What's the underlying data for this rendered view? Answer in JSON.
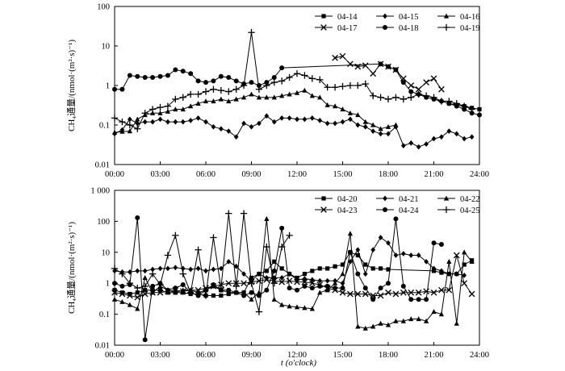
{
  "figure": {
    "xlabel": "t (o'clock)"
  },
  "chart_data": [
    {
      "type": "line",
      "ylabel": "CH₄通量/(nmol·(m²·s)⁻¹)",
      "xlabel": "",
      "xlim": [
        0,
        24
      ],
      "ylim": [
        0.01,
        100
      ],
      "yscale": "log",
      "x_ticks": [
        "00:00",
        "03:00",
        "06:00",
        "09:00",
        "12:00",
        "15:00",
        "18:00",
        "21:00",
        "24:00"
      ],
      "y_ticks": [
        "0.01",
        "0.1",
        "1",
        "10",
        "100"
      ],
      "legend_position": "top-right",
      "grid": false,
      "series": [
        {
          "name": "04-14",
          "marker": "square",
          "x": [
            22.0,
            22.5,
            23.0,
            23.5,
            24.0
          ],
          "y": [
            0.35,
            0.32,
            0.3,
            0.27,
            0.25
          ]
        },
        {
          "name": "04-15",
          "marker": "diamond",
          "x": [
            0.0,
            0.5,
            1.0,
            1.5,
            2.0,
            2.5,
            3.0,
            3.5,
            4.0,
            4.5,
            5.0,
            5.5,
            6.0,
            6.5,
            7.0,
            7.5,
            8.0,
            8.5,
            9.0,
            9.5,
            10.0,
            10.5,
            11.0,
            11.5,
            12.0,
            12.5,
            13.0,
            13.5,
            14.0,
            14.5,
            15.0,
            15.5,
            16.0,
            16.5,
            17.0,
            17.5,
            18.0,
            18.5,
            19.0,
            19.5,
            20.0,
            20.5,
            21.0,
            21.5,
            22.0,
            22.5,
            23.0,
            23.5
          ],
          "y": [
            0.06,
            0.075,
            0.14,
            0.11,
            0.12,
            0.12,
            0.14,
            0.12,
            0.12,
            0.12,
            0.13,
            0.15,
            0.12,
            0.09,
            0.08,
            0.07,
            0.05,
            0.11,
            0.09,
            0.11,
            0.17,
            0.12,
            0.15,
            0.15,
            0.14,
            0.14,
            0.15,
            0.13,
            0.11,
            0.11,
            0.12,
            0.14,
            0.1,
            0.09,
            0.07,
            0.06,
            0.06,
            0.09,
            0.03,
            0.035,
            0.028,
            0.033,
            0.045,
            0.05,
            0.07,
            0.06,
            0.045,
            0.05
          ]
        },
        {
          "name": "04-16",
          "marker": "triangle",
          "x": [
            0.0,
            0.5,
            1.0,
            1.5,
            2.0,
            2.5,
            3.0,
            3.5,
            4.0,
            4.5,
            5.0,
            5.5,
            6.0,
            6.5,
            7.0,
            7.5,
            8.0,
            8.5,
            9.0,
            9.5,
            10.0,
            10.5,
            11.0,
            11.5,
            12.0,
            12.5,
            13.0,
            13.5,
            14.0,
            14.5,
            15.0,
            15.5,
            16.0,
            16.5,
            17.0,
            17.5,
            18.0,
            18.5
          ],
          "y": [
            0.065,
            0.068,
            0.07,
            0.14,
            0.18,
            0.2,
            0.2,
            0.22,
            0.25,
            0.25,
            0.3,
            0.35,
            0.4,
            0.4,
            0.45,
            0.4,
            0.45,
            0.5,
            0.6,
            0.5,
            0.5,
            0.5,
            0.55,
            0.6,
            0.65,
            0.75,
            0.55,
            0.5,
            0.32,
            0.3,
            0.25,
            0.2,
            0.18,
            0.12,
            0.1,
            0.08,
            0.09,
            0.1
          ]
        },
        {
          "name": "04-17",
          "marker": "cross",
          "x": [
            14.5,
            15.0,
            15.5,
            16.0,
            16.5,
            17.0,
            17.5,
            18.0,
            18.5,
            19.0,
            19.5,
            20.0,
            20.5,
            21.0,
            21.5
          ],
          "y": [
            5.0,
            5.5,
            3.5,
            3.0,
            3.2,
            2.0,
            3.5,
            3.0,
            2.5,
            1.5,
            1.0,
            0.8,
            1.2,
            1.5,
            0.8
          ]
        },
        {
          "name": "04-18",
          "marker": "circle",
          "x": [
            0.0,
            0.5,
            1.0,
            1.5,
            2.0,
            2.5,
            3.0,
            3.5,
            4.0,
            4.5,
            5.0,
            5.5,
            6.0,
            6.5,
            7.0,
            7.5,
            8.0,
            8.5,
            9.0,
            9.5,
            10.0,
            10.5,
            11.0,
            17.5,
            18.0,
            18.5,
            19.0,
            19.5,
            20.0,
            20.5,
            21.0,
            21.5,
            22.0,
            22.5,
            23.0,
            23.5,
            24.0
          ],
          "y": [
            0.8,
            0.8,
            1.8,
            1.7,
            1.6,
            1.6,
            1.7,
            1.8,
            2.5,
            2.3,
            2.0,
            1.3,
            1.2,
            1.3,
            1.7,
            1.6,
            1.3,
            1.1,
            1.2,
            1.0,
            1.2,
            1.6,
            2.8,
            3.5,
            3.0,
            2.5,
            1.2,
            0.7,
            0.6,
            0.5,
            0.45,
            0.4,
            0.35,
            0.3,
            0.25,
            0.2,
            0.18
          ]
        },
        {
          "name": "04-19",
          "marker": "plus",
          "x": [
            0.0,
            0.5,
            1.0,
            1.5,
            2.0,
            2.5,
            3.0,
            3.5,
            4.0,
            4.5,
            5.0,
            5.5,
            6.0,
            6.5,
            7.0,
            7.5,
            8.0,
            8.5,
            9.0,
            9.5,
            10.0,
            10.5,
            11.0,
            11.5,
            12.0,
            12.5,
            13.0,
            13.5,
            14.0,
            14.5,
            15.0,
            15.5,
            16.0,
            16.5,
            17.0,
            17.5,
            18.0,
            18.5,
            19.0,
            19.5,
            20.0,
            20.5,
            21.0,
            21.5,
            22.0,
            22.5,
            23.0,
            23.5
          ],
          "y": [
            0.15,
            0.12,
            0.1,
            0.08,
            0.2,
            0.25,
            0.28,
            0.3,
            0.45,
            0.5,
            0.6,
            0.6,
            0.7,
            0.8,
            0.75,
            0.7,
            0.8,
            1.0,
            22.0,
            0.8,
            1.0,
            1.2,
            1.3,
            1.6,
            2.0,
            1.8,
            1.5,
            1.4,
            0.9,
            0.9,
            0.95,
            1.0,
            1.0,
            1.1,
            0.55,
            0.5,
            0.45,
            0.5,
            0.45,
            0.5,
            0.6,
            0.55,
            0.5,
            0.4,
            0.4,
            0.35,
            0.3,
            0.25
          ]
        }
      ]
    },
    {
      "type": "line",
      "ylabel": "CH₄通量/(nmol·(m²·s)⁻¹)",
      "xlabel": "t (o'clock)",
      "xlim": [
        0,
        24
      ],
      "ylim": [
        0.01,
        1000
      ],
      "yscale": "log",
      "x_ticks": [
        "00:00",
        "03:00",
        "06:00",
        "09:00",
        "12:00",
        "15:00",
        "18:00",
        "21:00",
        "24:00"
      ],
      "y_ticks": [
        "0.01",
        "0.1",
        "1",
        "10",
        "100",
        "1 000"
      ],
      "legend_position": "top-right",
      "grid": false,
      "series": [
        {
          "name": "04-20",
          "marker": "square",
          "x": [
            0.0,
            0.5,
            1.0,
            1.5,
            2.0,
            2.5,
            3.0,
            3.5,
            4.0,
            4.5,
            5.0,
            5.5,
            6.0,
            6.5,
            7.0,
            7.5,
            8.0,
            8.5,
            9.0,
            9.5,
            10.0,
            10.5,
            11.0,
            11.5,
            12.0,
            12.5,
            13.0,
            13.5,
            14.0,
            14.5,
            15.0,
            15.5,
            16.0,
            16.5,
            17.0,
            17.5,
            18.0,
            21.0,
            21.5,
            22.0,
            22.5,
            23.0,
            23.5
          ],
          "y": [
            0.6,
            0.5,
            0.45,
            0.5,
            0.6,
            0.6,
            0.6,
            0.5,
            0.5,
            0.5,
            0.45,
            0.45,
            0.4,
            0.4,
            0.4,
            0.45,
            0.5,
            0.5,
            1.5,
            2.0,
            2.5,
            5.0,
            3.0,
            2.0,
            1.5,
            2.0,
            2.5,
            3.0,
            3.0,
            3.5,
            4.0,
            10.0,
            8.0,
            4.0,
            3.0,
            3.0,
            2.8,
            2.5,
            2.2,
            2.0,
            2.0,
            4.0,
            5.5
          ]
        },
        {
          "name": "04-21",
          "marker": "diamond",
          "x": [
            0.0,
            0.5,
            1.0,
            1.5,
            2.0,
            2.5,
            3.0,
            3.5,
            4.0,
            4.5,
            5.0,
            5.5,
            6.0,
            6.5,
            7.0,
            7.5,
            8.0,
            8.5,
            9.0,
            9.5,
            10.0,
            10.5,
            11.0,
            11.5,
            12.0,
            12.5,
            13.0,
            13.5,
            14.0,
            14.5,
            15.0,
            15.5,
            16.0,
            16.5,
            17.0,
            17.5,
            18.0,
            18.5,
            19.0,
            19.5,
            20.0,
            20.5,
            21.0,
            21.5,
            22.0,
            22.5,
            23.0
          ],
          "y": [
            2.5,
            2.3,
            2.3,
            2.5,
            2.5,
            2.8,
            3.0,
            3.0,
            3.2,
            3.0,
            2.8,
            3.0,
            2.5,
            2.8,
            3.0,
            5.0,
            3.5,
            2.0,
            1.2,
            2.0,
            1.5,
            1.5,
            1.5,
            2.0,
            1.3,
            1.4,
            1.3,
            1.2,
            1.2,
            1.2,
            1.0,
            5.0,
            12.0,
            2.0,
            12.0,
            30.0,
            20.0,
            8.0,
            9.0,
            8.0,
            8.0,
            5.0,
            3.0,
            2.5,
            2.0,
            2.0,
            1.8
          ]
        },
        {
          "name": "04-22",
          "marker": "triangle",
          "x": [
            0.0,
            0.5,
            1.0,
            1.5,
            2.0,
            2.5,
            3.0,
            3.5,
            4.0,
            4.5,
            5.0,
            5.5,
            6.0,
            6.5,
            7.0,
            7.5,
            8.0,
            8.5,
            9.0,
            9.5,
            10.0,
            10.5,
            11.0,
            11.5,
            12.0,
            12.5,
            13.0,
            13.5,
            14.0,
            14.5,
            15.0,
            15.5,
            16.0,
            16.5,
            17.0,
            17.5,
            18.0,
            18.5,
            19.0,
            19.5,
            20.0,
            20.5,
            21.0,
            21.5,
            22.0,
            22.5,
            23.0,
            23.5
          ],
          "y": [
            0.3,
            0.25,
            0.2,
            0.15,
            1.5,
            0.5,
            0.8,
            0.6,
            0.5,
            0.6,
            0.6,
            0.5,
            0.6,
            0.8,
            0.6,
            0.5,
            0.5,
            0.5,
            0.3,
            0.5,
            120.0,
            0.3,
            0.2,
            0.18,
            0.17,
            0.16,
            0.15,
            0.5,
            0.6,
            1.0,
            2.0,
            40.0,
            0.04,
            0.035,
            0.04,
            0.05,
            0.045,
            0.06,
            0.06,
            0.07,
            0.07,
            0.06,
            0.12,
            0.1,
            5.0,
            0.05,
            10.0,
            5.0
          ]
        },
        {
          "name": "04-23",
          "marker": "cross",
          "x": [
            0.0,
            0.5,
            1.0,
            1.5,
            2.0,
            2.5,
            3.0,
            3.5,
            4.0,
            4.5,
            5.0,
            5.5,
            6.0,
            6.5,
            7.0,
            7.5,
            8.0,
            8.5,
            9.0,
            9.5,
            10.0,
            10.5,
            11.0,
            11.5,
            12.0,
            12.5,
            13.0,
            13.5,
            14.0,
            14.5,
            15.0,
            15.5,
            16.0,
            16.5,
            17.0,
            17.5,
            18.0,
            18.5,
            19.0,
            19.5,
            20.0,
            20.5,
            21.0,
            21.5,
            22.0,
            22.5,
            23.0,
            23.5
          ],
          "y": [
            0.5,
            0.45,
            0.4,
            0.35,
            0.45,
            0.5,
            0.5,
            0.55,
            0.6,
            0.55,
            0.6,
            0.6,
            0.7,
            0.8,
            0.9,
            1.0,
            1.0,
            1.0,
            1.1,
            1.2,
            1.3,
            1.2,
            1.1,
            1.2,
            1.1,
            1.1,
            1.0,
            0.9,
            0.7,
            0.6,
            0.5,
            0.45,
            0.45,
            0.45,
            0.4,
            0.4,
            0.5,
            0.45,
            0.5,
            0.5,
            0.5,
            0.55,
            0.5,
            0.6,
            0.6,
            8.0,
            1.0,
            0.45
          ]
        },
        {
          "name": "04-24",
          "marker": "circle",
          "x": [
            0.0,
            0.5,
            1.0,
            1.5,
            2.0,
            2.5,
            3.0,
            3.5,
            4.0,
            4.5,
            5.0,
            5.5,
            6.0,
            6.5,
            7.0,
            7.5,
            8.0,
            8.5,
            9.0,
            9.5,
            10.0,
            10.5,
            11.0,
            11.5,
            12.0,
            12.5,
            13.0,
            13.5,
            14.0,
            14.5,
            15.0,
            15.5,
            16.0,
            16.5,
            17.0,
            17.5,
            18.0,
            18.5,
            19.0,
            19.5,
            20.0,
            20.5,
            21.0,
            21.5
          ],
          "y": [
            1.0,
            0.8,
            0.9,
            130.0,
            0.015,
            0.8,
            1.0,
            0.6,
            0.7,
            0.9,
            0.5,
            0.4,
            0.6,
            0.9,
            0.6,
            0.6,
            0.5,
            0.4,
            0.5,
            0.4,
            0.6,
            2.5,
            60.0,
            0.7,
            0.6,
            0.8,
            0.7,
            0.8,
            0.8,
            0.7,
            0.7,
            10.0,
            2.0,
            0.7,
            0.3,
            0.7,
            1.0,
            120.0,
            0.8,
            0.3,
            0.3,
            0.3,
            20.0,
            18.0
          ]
        },
        {
          "name": "04-25",
          "marker": "plus",
          "x": [
            0.0,
            0.5,
            1.0,
            1.5,
            2.0,
            2.5,
            3.0,
            3.5,
            4.0,
            4.5,
            5.0,
            5.5,
            6.0,
            6.5,
            7.0,
            7.5,
            8.0,
            8.5,
            9.0,
            9.5,
            10.0,
            10.5,
            11.0,
            11.5
          ],
          "y": [
            3.0,
            2.0,
            1.0,
            0.7,
            0.8,
            2.0,
            0.9,
            8.0,
            35.0,
            2.0,
            0.5,
            12.0,
            0.4,
            30.0,
            0.7,
            180.0,
            0.8,
            180.0,
            1.0,
            0.12,
            15.0,
            1.0,
            15.0,
            35.0
          ]
        }
      ]
    }
  ]
}
